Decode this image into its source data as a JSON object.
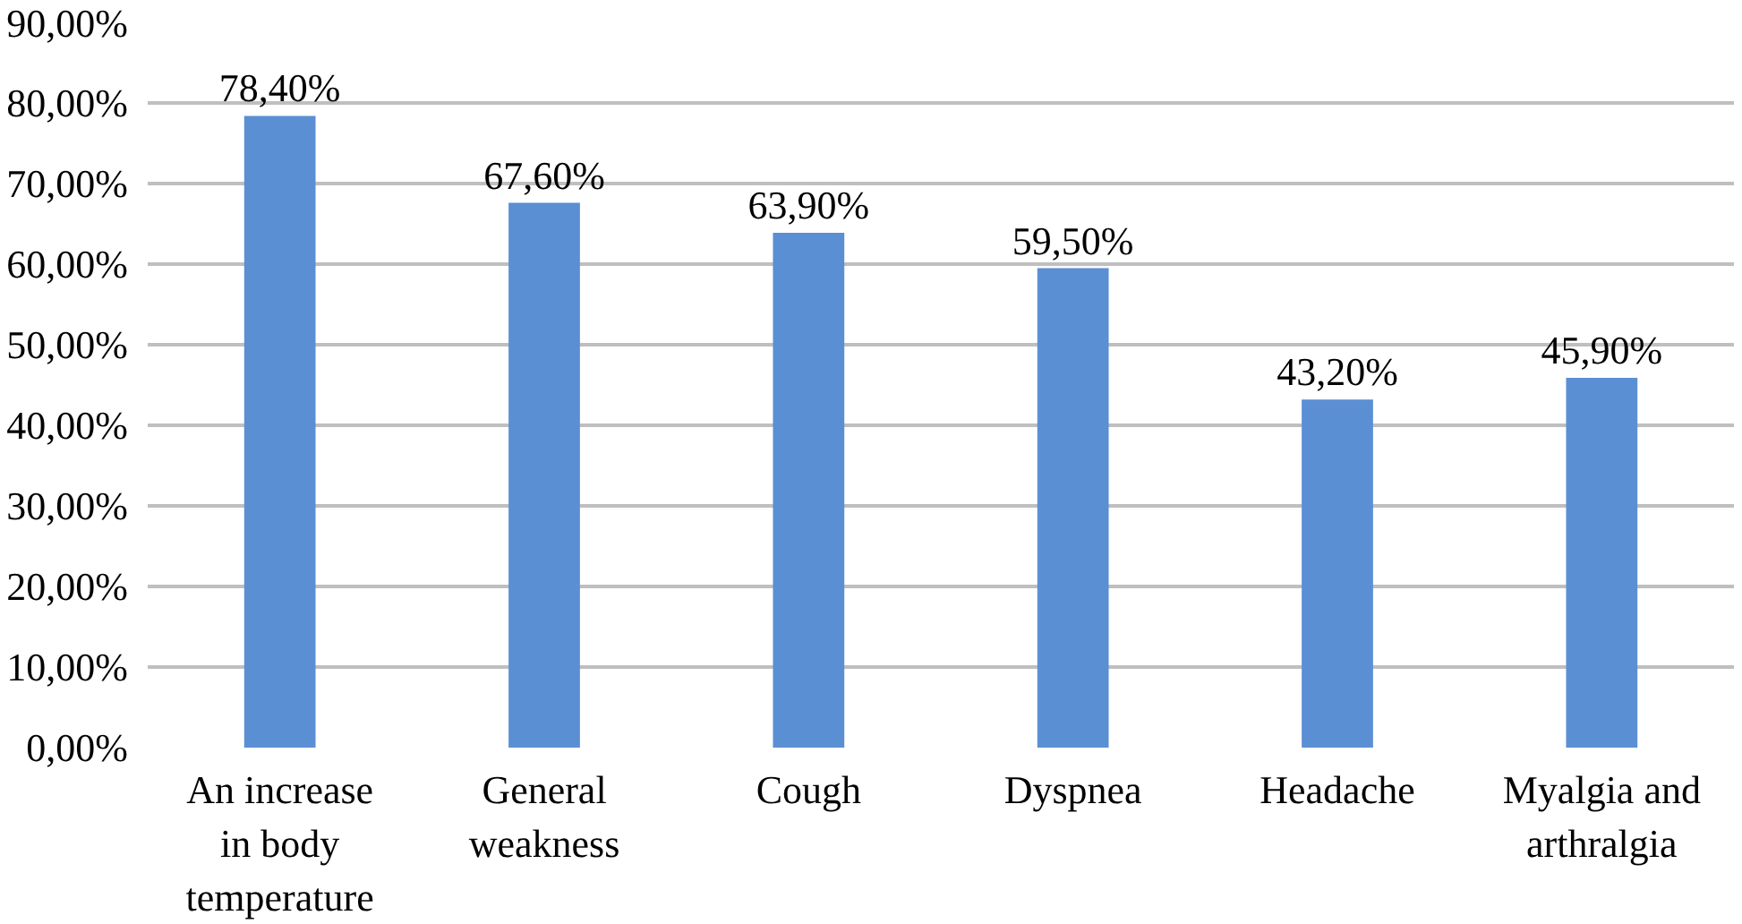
{
  "chart_data": {
    "type": "bar",
    "categories": [
      "An increase in body temperature",
      "General weakness",
      "Cough",
      "Dyspnea",
      "Headache",
      "Myalgia and arthralgia"
    ],
    "values": [
      78.4,
      67.6,
      63.9,
      59.5,
      43.2,
      45.9
    ],
    "value_labels": [
      "78,40%",
      "67,60%",
      "63,90%",
      "59,50%",
      "43,20%",
      "45,90%"
    ],
    "color": "#5b8fd3",
    "ylim": [
      0,
      90
    ],
    "yticks": [
      {
        "value": 0,
        "label": "0,00%"
      },
      {
        "value": 10,
        "label": "10,00%"
      },
      {
        "value": 20,
        "label": "20,00%"
      },
      {
        "value": 30,
        "label": "30,00%"
      },
      {
        "value": 40,
        "label": "40,00%"
      },
      {
        "value": 50,
        "label": "50,00%"
      },
      {
        "value": 60,
        "label": "60,00%"
      },
      {
        "value": 70,
        "label": "70,00%"
      },
      {
        "value": 80,
        "label": "80,00%"
      },
      {
        "value": 90,
        "label": "90,00%"
      }
    ],
    "grid": "y"
  }
}
